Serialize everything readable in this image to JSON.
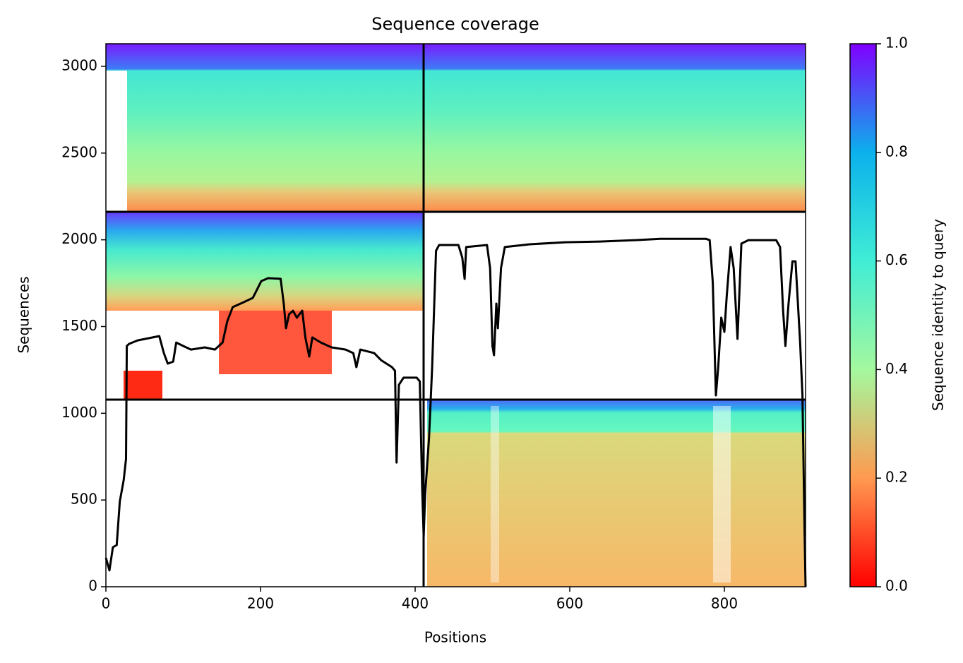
{
  "chart_data": {
    "type": "line",
    "title": "Sequence coverage",
    "x_label": "Positions",
    "y_label": "Sequences",
    "xlim": [
      0,
      905
    ],
    "ylim": [
      0,
      3130
    ],
    "xticks": [
      0,
      200,
      400,
      600,
      800
    ],
    "yticks": [
      0,
      500,
      1000,
      1500,
      2000,
      2500,
      3000
    ],
    "color": "#000000",
    "x": [
      0,
      4.6,
      9,
      14,
      18,
      23,
      26,
      27,
      30,
      41,
      69,
      75,
      80,
      87,
      91,
      100,
      110,
      128,
      141,
      151,
      157,
      164,
      178,
      190,
      201,
      210,
      226,
      230,
      233,
      237,
      242,
      247,
      254,
      258,
      263,
      267,
      278,
      292,
      310,
      320,
      324,
      329,
      347,
      356,
      370,
      374,
      376,
      379,
      385,
      402,
      406,
      409,
      411,
      413,
      418,
      422,
      427,
      431,
      456,
      461,
      464,
      466,
      493,
      497,
      500,
      502,
      505,
      507,
      511,
      516,
      548,
      594,
      639,
      685,
      717,
      776,
      781,
      785,
      789,
      792,
      796,
      800,
      803,
      808,
      812,
      817,
      822,
      831,
      867,
      872,
      876,
      879,
      883,
      888,
      892,
      898,
      901,
      904,
      905
    ],
    "values": [
      167,
      94,
      228,
      240,
      492,
      615,
      737,
      1388,
      1400,
      1420,
      1445,
      1347,
      1286,
      1298,
      1408,
      1388,
      1367,
      1380,
      1367,
      1408,
      1530,
      1612,
      1640,
      1665,
      1762,
      1779,
      1775,
      1632,
      1490,
      1571,
      1591,
      1551,
      1591,
      1437,
      1327,
      1437,
      1408,
      1380,
      1367,
      1347,
      1266,
      1367,
      1347,
      1306,
      1266,
      1245,
      716,
      1164,
      1205,
      1205,
      1184,
      574,
      289,
      533,
      859,
      1266,
      1937,
      1970,
      1970,
      1897,
      1775,
      1958,
      1970,
      1836,
      1388,
      1335,
      1632,
      1490,
      1836,
      1958,
      1974,
      1986,
      1990,
      1998,
      2006,
      2006,
      1998,
      1754,
      1103,
      1266,
      1551,
      1469,
      1673,
      1958,
      1836,
      1429,
      1978,
      1998,
      1998,
      1958,
      1591,
      1388,
      1632,
      1876,
      1876,
      1408,
      1103,
      248,
      0
    ],
    "colorbar": {
      "label": "Sequence identity to query",
      "clim": [
        0,
        1
      ],
      "ticks": [
        {
          "value": 0,
          "label": "0.0"
        },
        {
          "value": 0.2,
          "label": "0.2"
        },
        {
          "value": 0.4,
          "label": "0.4"
        },
        {
          "value": 0.6,
          "label": "0.6"
        },
        {
          "value": 0.8,
          "label": "0.8"
        },
        {
          "value": 1,
          "label": "1.0"
        }
      ]
    }
  }
}
